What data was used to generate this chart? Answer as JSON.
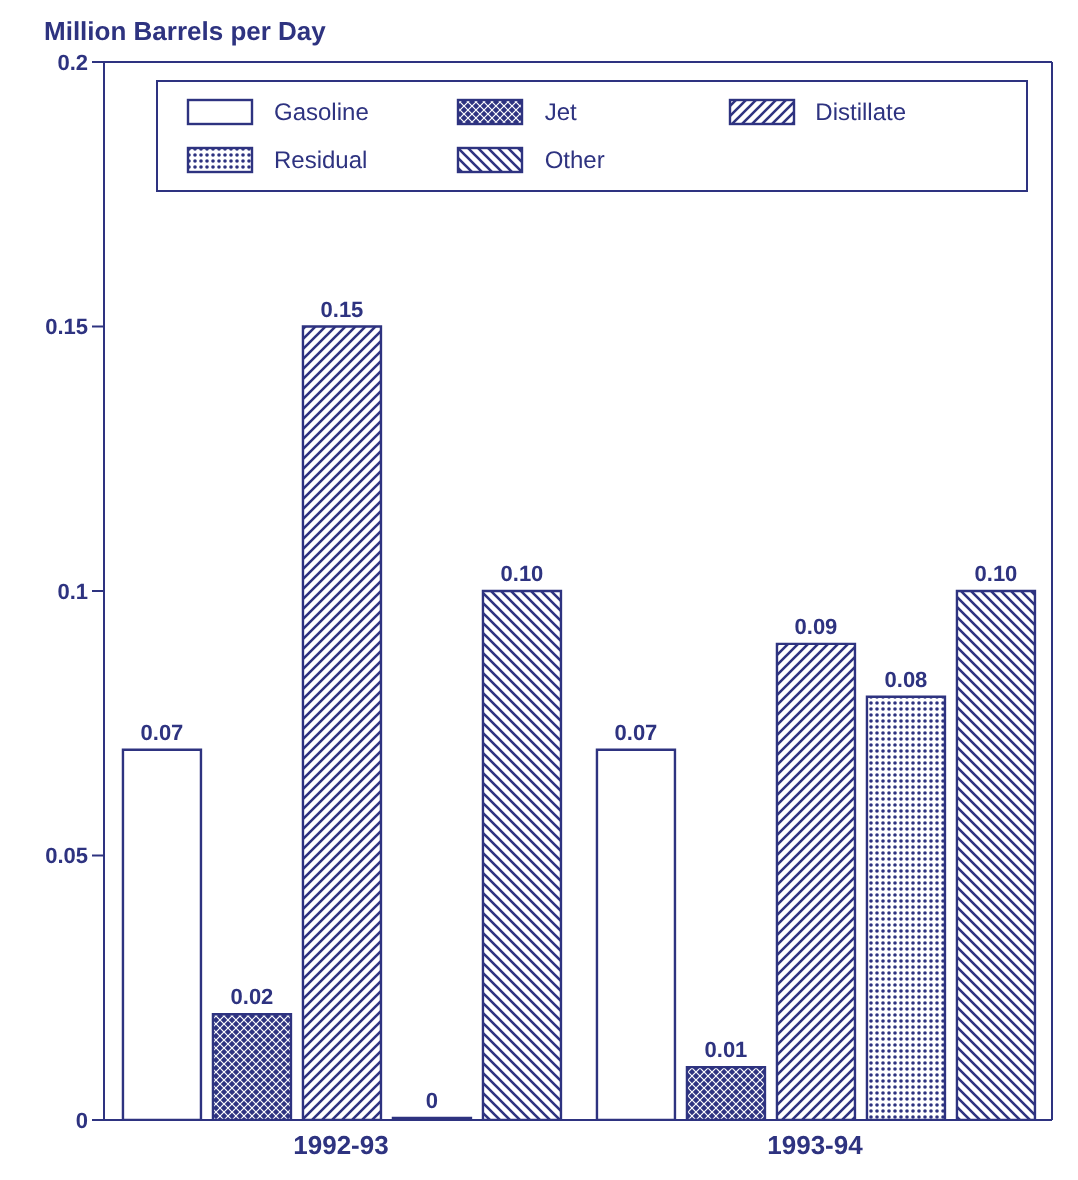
{
  "chart_data": {
    "type": "bar",
    "ylabel": "Million Barrels per Day",
    "categories": [
      "1992-93",
      "1993-94"
    ],
    "series": [
      {
        "name": "Gasoline",
        "color": "#ffffff",
        "values": [
          0.07,
          0.07
        ],
        "value_labels": [
          "0.07",
          "0.07"
        ]
      },
      {
        "name": "Jet",
        "color": "#2e3380",
        "values": [
          0.02,
          0.01
        ],
        "value_labels": [
          "0.02",
          "0.01"
        ]
      },
      {
        "name": "Distillate",
        "color": "#2e3380",
        "values": [
          0.15,
          0.09
        ],
        "value_labels": [
          "0.15",
          "0.09"
        ]
      },
      {
        "name": "Residual",
        "color": "#2e3380",
        "values": [
          0,
          0.08
        ],
        "value_labels": [
          "0",
          "0.08"
        ]
      },
      {
        "name": "Other",
        "color": "#2e3380",
        "values": [
          0.1,
          0.1
        ],
        "value_labels": [
          "0.10",
          "0.10"
        ]
      }
    ],
    "ylim": [
      0,
      0.2
    ],
    "yticks": [
      0,
      0.05,
      0.1,
      0.15,
      0.2
    ],
    "grid": false,
    "legend": "top"
  }
}
